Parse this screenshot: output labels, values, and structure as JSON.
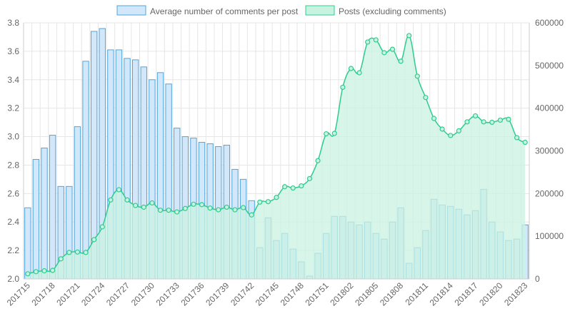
{
  "colors": {
    "bar_fill": "#d2e8fa",
    "bar_stroke": "#4da6e0",
    "line_stroke": "#2ecc8f",
    "area_fill": "#c9f3e1",
    "grid": "#e6e6e6",
    "axis_text": "#666666"
  },
  "chart_data": {
    "type": "bar",
    "legend_position": "top",
    "grid": true,
    "x": [
      "201715",
      "201716",
      "201717",
      "201718",
      "201719",
      "201720",
      "201721",
      "201722",
      "201723",
      "201724",
      "201725",
      "201726",
      "201727",
      "201728",
      "201729",
      "201730",
      "201731",
      "201732",
      "201733",
      "201734",
      "201735",
      "201736",
      "201737",
      "201738",
      "201739",
      "201740",
      "201741",
      "201742",
      "201743",
      "201744",
      "201745",
      "201746",
      "201747",
      "201748",
      "201749",
      "201750",
      "201751",
      "201752",
      "201801",
      "201802",
      "201803",
      "201804",
      "201805",
      "201806",
      "201807",
      "201808",
      "201809",
      "201810",
      "201811",
      "201812",
      "201813",
      "201814",
      "201815",
      "201816",
      "201817",
      "201818",
      "201819",
      "201820",
      "201821",
      "201822",
      "201823"
    ],
    "x_tick_labels": [
      "201715",
      "201718",
      "201721",
      "201724",
      "201727",
      "201730",
      "201733",
      "201736",
      "201739",
      "201742",
      "201745",
      "201748",
      "201751",
      "201802",
      "201805",
      "201808",
      "201811",
      "201814",
      "201817",
      "201820",
      "201823"
    ],
    "y_left": {
      "ticks": [
        "2.0",
        "2.2",
        "2.4",
        "2.6",
        "2.8",
        "3.0",
        "3.2",
        "3.4",
        "3.6",
        "3.8"
      ],
      "range": [
        2.0,
        3.8
      ]
    },
    "y_right": {
      "ticks": [
        "0",
        "100000",
        "200000",
        "300000",
        "400000",
        "500000",
        "600000"
      ],
      "range": [
        0,
        600000
      ]
    },
    "series": [
      {
        "name": "Average number of comments per post",
        "type": "bar",
        "axis": "left",
        "values": [
          2.5,
          2.84,
          2.92,
          3.01,
          2.65,
          2.65,
          3.07,
          3.53,
          3.74,
          3.76,
          3.61,
          3.61,
          3.55,
          3.54,
          3.49,
          3.4,
          3.45,
          3.37,
          3.06,
          3.0,
          2.99,
          2.96,
          2.95,
          2.93,
          2.94,
          2.77,
          2.7,
          2.55,
          2.22,
          2.43,
          2.27,
          2.32,
          2.21,
          2.12,
          2.02,
          2.18,
          2.32,
          2.44,
          2.44,
          2.4,
          2.38,
          2.4,
          2.32,
          2.28,
          2.4,
          2.5,
          2.11,
          2.22,
          2.34,
          2.56,
          2.52,
          2.51,
          2.49,
          2.45,
          2.48,
          2.63,
          2.4,
          2.33,
          2.27,
          2.28,
          2.38
        ]
      },
      {
        "name": "Posts (excluding comments)",
        "type": "area",
        "axis": "right",
        "values": [
          12000,
          17000,
          19000,
          20000,
          47000,
          62000,
          63000,
          62000,
          92000,
          122000,
          185000,
          209000,
          185000,
          172000,
          168000,
          178000,
          161000,
          161000,
          157000,
          165000,
          175000,
          174000,
          166000,
          162000,
          168000,
          162000,
          167000,
          150000,
          180000,
          181000,
          191000,
          216000,
          213000,
          218000,
          235000,
          277000,
          340000,
          341000,
          449000,
          493000,
          483000,
          555000,
          560000,
          530000,
          538000,
          510000,
          570000,
          475000,
          425000,
          376000,
          351000,
          336000,
          347000,
          368000,
          382000,
          368000,
          367000,
          372000,
          374000,
          331000,
          320000
        ]
      }
    ]
  }
}
